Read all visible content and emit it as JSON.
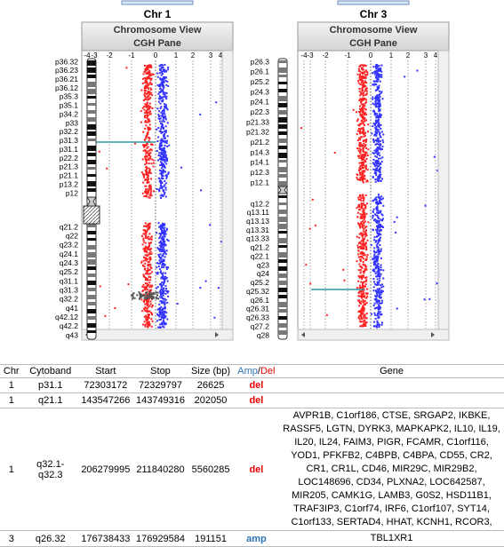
{
  "panels": [
    {
      "title": "Chr 1",
      "header": "Chromosome View",
      "subheader": "CGH Pane",
      "axis_labels": [
        "-4",
        "-3",
        "-2",
        "-1",
        "0",
        "1",
        "2",
        "3",
        "4"
      ],
      "bands": [
        "p36.32",
        "p36.23",
        "p36.21",
        "p36.12",
        "p35.3",
        "p35.1",
        "p34.2",
        "p33",
        "p32.2",
        "p31.3",
        "p31.1",
        "p22.2",
        "p21.3",
        "p21.1",
        "p13.2",
        "p12",
        "q21.2",
        "q22",
        "q23.2",
        "q24.1",
        "q24.3",
        "q25.2",
        "q31.1",
        "q31.3",
        "q32.2",
        "q41",
        "q42.12",
        "q42.2",
        "q43"
      ]
    },
    {
      "title": "Chr 3",
      "header": "Chromosome View",
      "subheader": "CGH Pane",
      "axis_labels": [
        "-4",
        "-3",
        "-2",
        "-1",
        "0",
        "1",
        "2",
        "3",
        "4"
      ],
      "bands": [
        "p26.3",
        "p26.1",
        "p25.2",
        "p24.3",
        "p24.1",
        "p22.3",
        "p21.33",
        "p21.32",
        "p21.2",
        "p14.3",
        "p14.1",
        "p12.3",
        "p12.1",
        "q12.2",
        "q13.11",
        "q13.13",
        "q13.31",
        "q13.33",
        "q21.2",
        "q22.1",
        "q23",
        "q24",
        "q25.2",
        "q25.32",
        "q26.1",
        "q26.31",
        "q26.33",
        "q27.2",
        "q28"
      ]
    }
  ],
  "table": {
    "headers": [
      "Chr",
      "Cytoband",
      "Start",
      "Stop",
      "Size (bp)",
      {
        "amp": "Amp",
        "sep": "/",
        "del": "Del"
      },
      "Gene"
    ],
    "rows": [
      [
        1,
        "p31.1",
        72303172,
        72329797,
        26625,
        "del",
        ""
      ],
      [
        1,
        "q21.1",
        143547266,
        143749316,
        202050,
        "del",
        ""
      ],
      [
        1,
        "q32.1-q32.3",
        206279995,
        211840280,
        5560285,
        "del",
        "AVPR1B, C1orf186, CTSE, SRGAP2, IKBKE, RASSF5, LGTN, DYRK3, MAPKAPK2, IL10, IL19, IL20, IL24, FAIM3, PIGR, FCAMR, C1orf116, YOD1, PFKFB2, C4BPB, C4BPA, CD55, CR2, CR1, CR1L, CD46, MIR29C, MIR29B2, LOC148696, CD34, PLXNA2, LOC642587, MIR205, CAMK1G, LAMB3, G0S2, HSD11B1, TRAF3IP3, C1orf74, IRF6, C1orf107, SYT14, C1orf133, SERTAD4, HHAT, KCNH1, RCOR3,"
      ],
      [
        3,
        "q26.32",
        176738433,
        176929584,
        191151,
        "amp",
        "TBL1XR1"
      ]
    ]
  }
}
